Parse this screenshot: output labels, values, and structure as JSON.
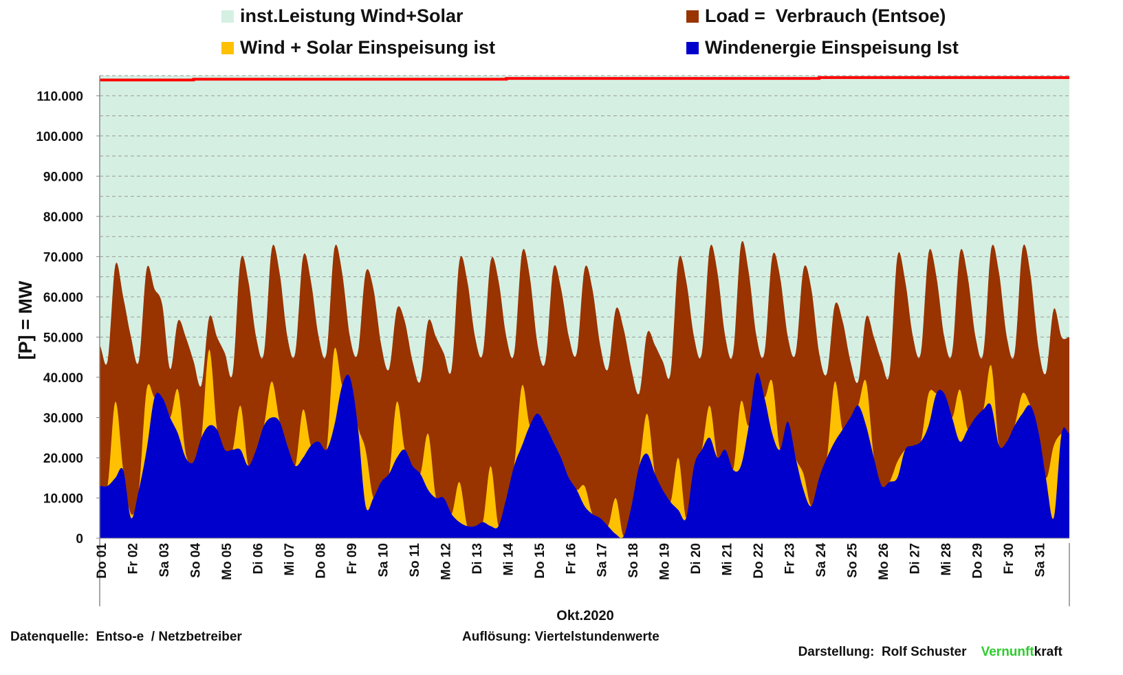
{
  "chart_data": {
    "type": "area",
    "title": "",
    "xlabel": "Okt.2020",
    "ylabel": "[P] = MW",
    "ylim": [
      0,
      115000
    ],
    "yticks": [
      0,
      10000,
      20000,
      30000,
      40000,
      50000,
      60000,
      70000,
      80000,
      90000,
      100000,
      110000
    ],
    "ytick_labels": [
      "0",
      "10.000",
      "20.000",
      "30.000",
      "40.000",
      "50.000",
      "60.000",
      "70.000",
      "80.000",
      "90.000",
      "100.000",
      "110.000"
    ],
    "grid": "horizontal dashed, every 5.000",
    "legend_placement": "top",
    "sample_hours": [
      "00:00",
      "06:00",
      "12:00",
      "18:00"
    ],
    "legend": [
      {
        "key": "installed",
        "label": "inst.Leistung Wind+Solar",
        "color": "#d5f0e2"
      },
      {
        "key": "load",
        "label": "Load =  Verbrauch (Entsoe)",
        "color": "#993300"
      },
      {
        "key": "wind_solar",
        "label": "Wind + Solar Einspeisung ist",
        "color": "#ffc000"
      },
      {
        "key": "wind",
        "label": "Windenergie Einspeisung Ist",
        "color": "#0000cc"
      }
    ],
    "installed_line_color": "#ff0000",
    "days": [
      {
        "label": "Do 01",
        "installed": 113900,
        "load": [
          48000,
          44000,
          68000,
          60000
        ],
        "wind_solar": [
          13000,
          13000,
          34000,
          17000
        ],
        "wind": [
          13000,
          13000,
          15000,
          17000
        ]
      },
      {
        "label": "Fr 02",
        "installed": 113900,
        "load": [
          50000,
          44000,
          67000,
          62000
        ],
        "wind_solar": [
          6000,
          12000,
          37000,
          35000
        ],
        "wind": [
          5000,
          12000,
          22000,
          35000
        ]
      },
      {
        "label": "Sa 03",
        "installed": 113900,
        "load": [
          58000,
          42000,
          54000,
          50000
        ],
        "wind_solar": [
          35000,
          30000,
          37000,
          21000
        ],
        "wind": [
          35000,
          30000,
          26000,
          20000
        ]
      },
      {
        "label": "So 04",
        "installed": 114100,
        "load": [
          44000,
          38000,
          55000,
          50000
        ],
        "wind_solar": [
          19000,
          25000,
          47000,
          27000
        ],
        "wind": [
          19000,
          25000,
          28000,
          27000
        ]
      },
      {
        "label": "Mo 05",
        "installed": 114100,
        "load": [
          46000,
          41000,
          69000,
          64000
        ],
        "wind_solar": [
          22000,
          22000,
          33000,
          18000
        ],
        "wind": [
          22000,
          22000,
          22000,
          18000
        ]
      },
      {
        "label": "Di 06",
        "installed": 114100,
        "load": [
          50000,
          46000,
          72000,
          66000
        ],
        "wind_solar": [
          22000,
          28000,
          39000,
          29000
        ],
        "wind": [
          22000,
          28000,
          30000,
          29000
        ]
      },
      {
        "label": "Mi 07",
        "installed": 114100,
        "load": [
          50000,
          46000,
          70000,
          64000
        ],
        "wind_solar": [
          23000,
          18000,
          32000,
          23000
        ],
        "wind": [
          23000,
          18000,
          20000,
          23000
        ]
      },
      {
        "label": "Do 08",
        "installed": 114100,
        "load": [
          50000,
          46000,
          72000,
          66000
        ],
        "wind_solar": [
          24000,
          22000,
          47000,
          38000
        ],
        "wind": [
          24000,
          22000,
          28000,
          38000
        ]
      },
      {
        "label": "Fr 09",
        "installed": 114100,
        "load": [
          50000,
          46000,
          66000,
          62000
        ],
        "wind_solar": [
          40000,
          28000,
          22000,
          10000
        ],
        "wind": [
          40000,
          28000,
          8000,
          10000
        ]
      },
      {
        "label": "Sa 10",
        "installed": 114100,
        "load": [
          48000,
          42000,
          57000,
          54000
        ],
        "wind_solar": [
          14000,
          16000,
          34000,
          22000
        ],
        "wind": [
          14000,
          16000,
          20000,
          22000
        ]
      },
      {
        "label": "So 11",
        "installed": 114100,
        "load": [
          44000,
          39000,
          54000,
          50000
        ],
        "wind_solar": [
          18000,
          16000,
          26000,
          10000
        ],
        "wind": [
          18000,
          16000,
          12000,
          10000
        ]
      },
      {
        "label": "Mo 12",
        "installed": 114100,
        "load": [
          46000,
          42000,
          69000,
          64000
        ],
        "wind_solar": [
          10000,
          6000,
          14000,
          3000
        ],
        "wind": [
          10000,
          6000,
          4000,
          3000
        ]
      },
      {
        "label": "Di 13",
        "installed": 114100,
        "load": [
          50000,
          46000,
          69000,
          64000
        ],
        "wind_solar": [
          3000,
          4000,
          18000,
          3000
        ],
        "wind": [
          3000,
          4000,
          3000,
          3000
        ]
      },
      {
        "label": "Mi 14",
        "installed": 114300,
        "load": [
          50000,
          46000,
          71000,
          65000
        ],
        "wind_solar": [
          10000,
          18000,
          38000,
          28000
        ],
        "wind": [
          10000,
          18000,
          23000,
          28000
        ]
      },
      {
        "label": "Do 15",
        "installed": 114300,
        "load": [
          48000,
          44000,
          67000,
          62000
        ],
        "wind_solar": [
          31000,
          28000,
          24000,
          20000
        ],
        "wind": [
          31000,
          28000,
          24000,
          20000
        ]
      },
      {
        "label": "Fr 16",
        "installed": 114300,
        "load": [
          50000,
          46000,
          67000,
          62000
        ],
        "wind_solar": [
          15000,
          12000,
          13000,
          6000
        ],
        "wind": [
          15000,
          12000,
          8000,
          6000
        ]
      },
      {
        "label": "Sa 17",
        "installed": 114300,
        "load": [
          48000,
          42000,
          57000,
          52000
        ],
        "wind_solar": [
          5000,
          3000,
          10000,
          500
        ],
        "wind": [
          5000,
          3000,
          1000,
          500
        ]
      },
      {
        "label": "So 18",
        "installed": 114300,
        "load": [
          42000,
          36000,
          51000,
          48000
        ],
        "wind_solar": [
          8000,
          18000,
          31000,
          16000
        ],
        "wind": [
          8000,
          18000,
          21000,
          16000
        ]
      },
      {
        "label": "Mo 19",
        "installed": 114300,
        "load": [
          44000,
          41000,
          69000,
          64000
        ],
        "wind_solar": [
          12000,
          9000,
          20000,
          5000
        ],
        "wind": [
          12000,
          9000,
          7000,
          5000
        ]
      },
      {
        "label": "Di 20",
        "installed": 114300,
        "load": [
          50000,
          46000,
          72000,
          66000
        ],
        "wind_solar": [
          18000,
          22000,
          33000,
          20000
        ],
        "wind": [
          18000,
          22000,
          25000,
          20000
        ]
      },
      {
        "label": "Mi 21",
        "installed": 114300,
        "load": [
          50000,
          46000,
          73000,
          66000
        ],
        "wind_solar": [
          22000,
          17000,
          34000,
          28000
        ],
        "wind": [
          22000,
          17000,
          18000,
          28000
        ]
      },
      {
        "label": "Do 22",
        "installed": 114300,
        "load": [
          50000,
          46000,
          70000,
          65000
        ],
        "wind_solar": [
          41000,
          35000,
          39000,
          22000
        ],
        "wind": [
          41000,
          35000,
          26000,
          22000
        ]
      },
      {
        "label": "Fr 23",
        "installed": 114300,
        "load": [
          50000,
          46000,
          67000,
          62000
        ],
        "wind_solar": [
          29000,
          20000,
          16000,
          8000
        ],
        "wind": [
          29000,
          20000,
          12000,
          8000
        ]
      },
      {
        "label": "Sa 24",
        "installed": 114500,
        "load": [
          46000,
          41000,
          58000,
          54000
        ],
        "wind_solar": [
          15000,
          20000,
          39000,
          27000
        ],
        "wind": [
          15000,
          20000,
          24000,
          27000
        ]
      },
      {
        "label": "So 25",
        "installed": 114500,
        "load": [
          44000,
          39000,
          55000,
          50000
        ],
        "wind_solar": [
          30000,
          33000,
          39000,
          20000
        ],
        "wind": [
          30000,
          33000,
          28000,
          20000
        ]
      },
      {
        "label": "Mo 26",
        "installed": 114500,
        "load": [
          44000,
          41000,
          70000,
          64000
        ],
        "wind_solar": [
          13000,
          14000,
          19000,
          22000
        ],
        "wind": [
          13000,
          14000,
          15000,
          22000
        ]
      },
      {
        "label": "Di 27",
        "installed": 114500,
        "load": [
          50000,
          46000,
          71000,
          65000
        ],
        "wind_solar": [
          23000,
          24000,
          36000,
          36000
        ],
        "wind": [
          23000,
          24000,
          28000,
          36000
        ]
      },
      {
        "label": "Mi 28",
        "installed": 114500,
        "load": [
          50000,
          46000,
          71000,
          65000
        ],
        "wind_solar": [
          36000,
          30000,
          37000,
          27000
        ],
        "wind": [
          36000,
          30000,
          24000,
          27000
        ]
      },
      {
        "label": "Do 29",
        "installed": 114500,
        "load": [
          50000,
          46000,
          72000,
          66000
        ],
        "wind_solar": [
          30000,
          32000,
          43000,
          23000
        ],
        "wind": [
          30000,
          32000,
          33000,
          23000
        ]
      },
      {
        "label": "Fr 30",
        "installed": 114500,
        "load": [
          50000,
          46000,
          72000,
          66000
        ],
        "wind_solar": [
          24000,
          28000,
          36000,
          33000
        ],
        "wind": [
          24000,
          28000,
          31000,
          33000
        ]
      },
      {
        "label": "Sa 31",
        "installed": 114500,
        "load": [
          48000,
          41000,
          57000,
          50000
        ],
        "wind_solar": [
          27000,
          15000,
          23000,
          26000
        ],
        "wind": [
          27000,
          15000,
          5000,
          26000
        ]
      }
    ]
  },
  "footer": {
    "source": "Datenquelle:  Entso-e  / Netzbetreiber",
    "resolution": "Auflösung: Viertelstundenwerte",
    "author": "Darstellung:  Rolf Schuster",
    "brand_green": "Vernunft",
    "brand_black": "kraft"
  }
}
